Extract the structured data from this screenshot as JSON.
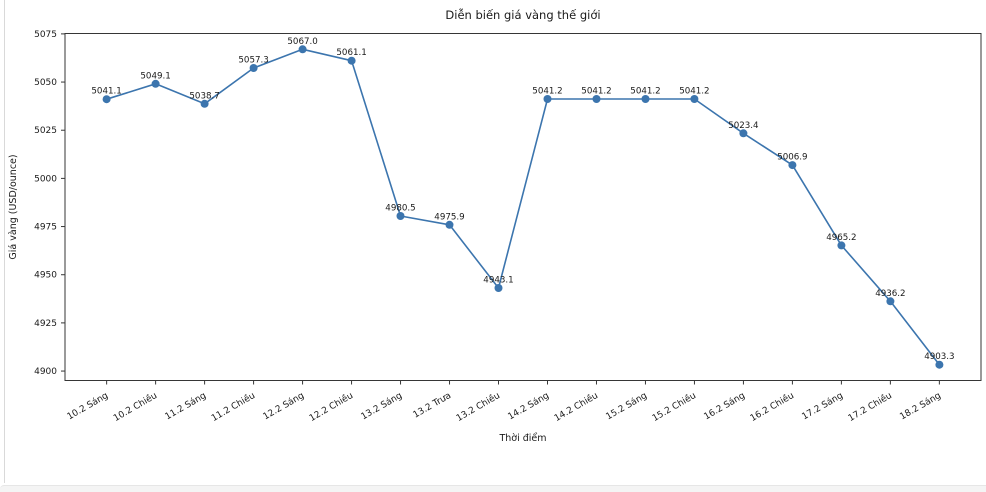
{
  "page": {
    "background": "#ffffff",
    "left_border_color": "#d9d9d9",
    "bottom_bar_color": "#f4f4f4"
  },
  "chart_data": {
    "type": "line",
    "title": "Diễn biến giá vàng thế giới",
    "xlabel": "Thời điểm",
    "ylabel": "Giá vàng (USD/ounce)",
    "categories": [
      "10.2 Sáng",
      "10.2 Chiều",
      "11.2 Sáng",
      "11.2 Chiều",
      "12.2 Sáng",
      "12.2 Chiều",
      "13.2 Sáng",
      "13.2 Trưa",
      "13.2 Chiều",
      "14.2 Sáng",
      "14.2 Chiều",
      "15.2 Sáng",
      "15.2 Chiều",
      "16.2 Sáng",
      "16.2 Chiều",
      "17.2 Sáng",
      "17.2 Chiều",
      "18.2 Sáng"
    ],
    "values": [
      5041.1,
      5049.1,
      5038.7,
      5057.3,
      5067.0,
      5061.1,
      4980.5,
      4975.9,
      4943.1,
      5041.2,
      5041.2,
      5041.2,
      5041.2,
      5023.4,
      5006.9,
      4965.2,
      4936.2,
      4903.3
    ],
    "point_labels": [
      "5041.1",
      "5049.1",
      "5038.7",
      "5057.3",
      "5067.0",
      "5061.1",
      "4980.5",
      "4975.9",
      "4943.1",
      "5041.2",
      "5041.2",
      "5041.2",
      "5041.2",
      "5023.4",
      "5006.9",
      "4965.2",
      "4936.2",
      "4903.3"
    ],
    "yticks": [
      4900,
      4925,
      4950,
      4975,
      5000,
      5025,
      5050,
      5075
    ],
    "ylim": [
      4895.1,
      5075.2
    ],
    "x_margin": 0.85,
    "xtick_rotation": 30,
    "grid": false,
    "legend": "none",
    "marker": "circle",
    "line_color": "#3c75ae",
    "marker_color": "#3c75ae",
    "text_color": "#1a1a1a",
    "spine_color": "#363636"
  }
}
